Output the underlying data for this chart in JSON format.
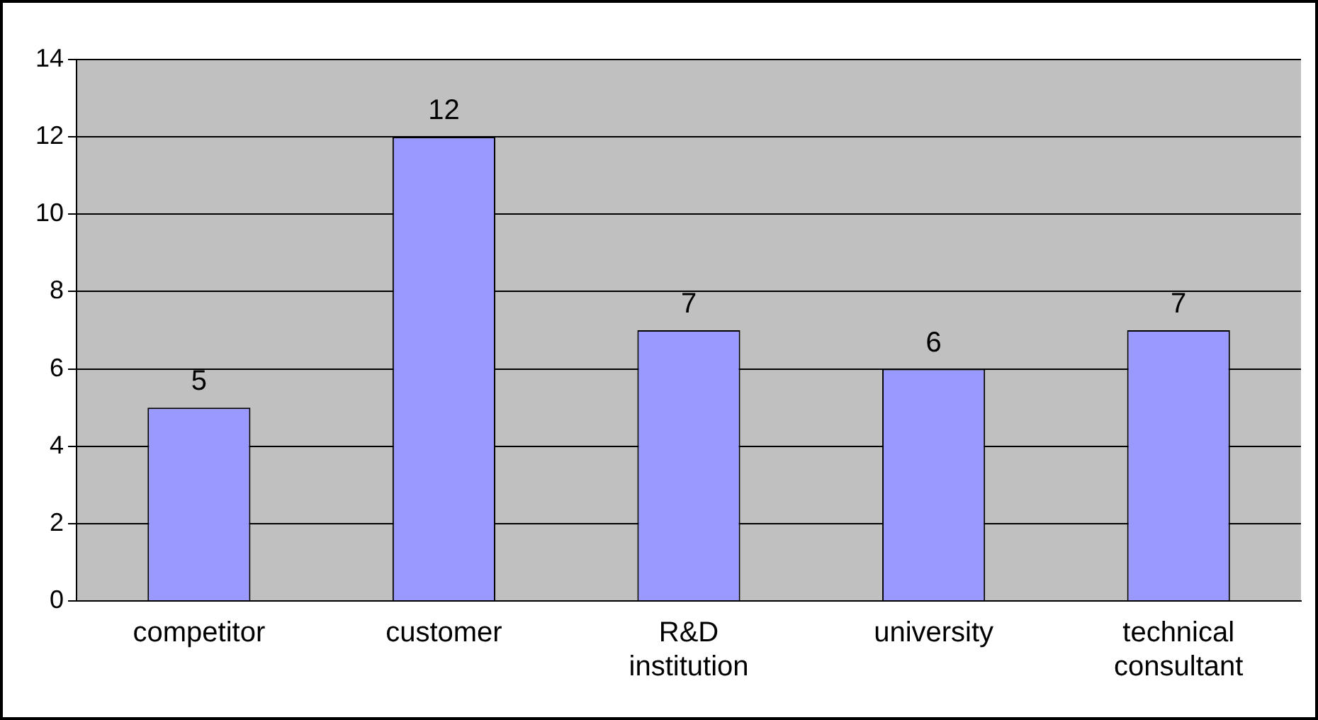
{
  "chart_data": {
    "type": "bar",
    "categories": [
      "competitor",
      "customer",
      "R&D institution",
      "university",
      "technical consultant"
    ],
    "values": [
      5,
      12,
      7,
      6,
      7
    ],
    "color": "#9999ff",
    "ylim": [
      0,
      14
    ],
    "yticks": [
      0,
      2,
      4,
      6,
      8,
      10,
      12,
      14
    ],
    "grid": "y",
    "data_labels": true,
    "legend": false
  }
}
